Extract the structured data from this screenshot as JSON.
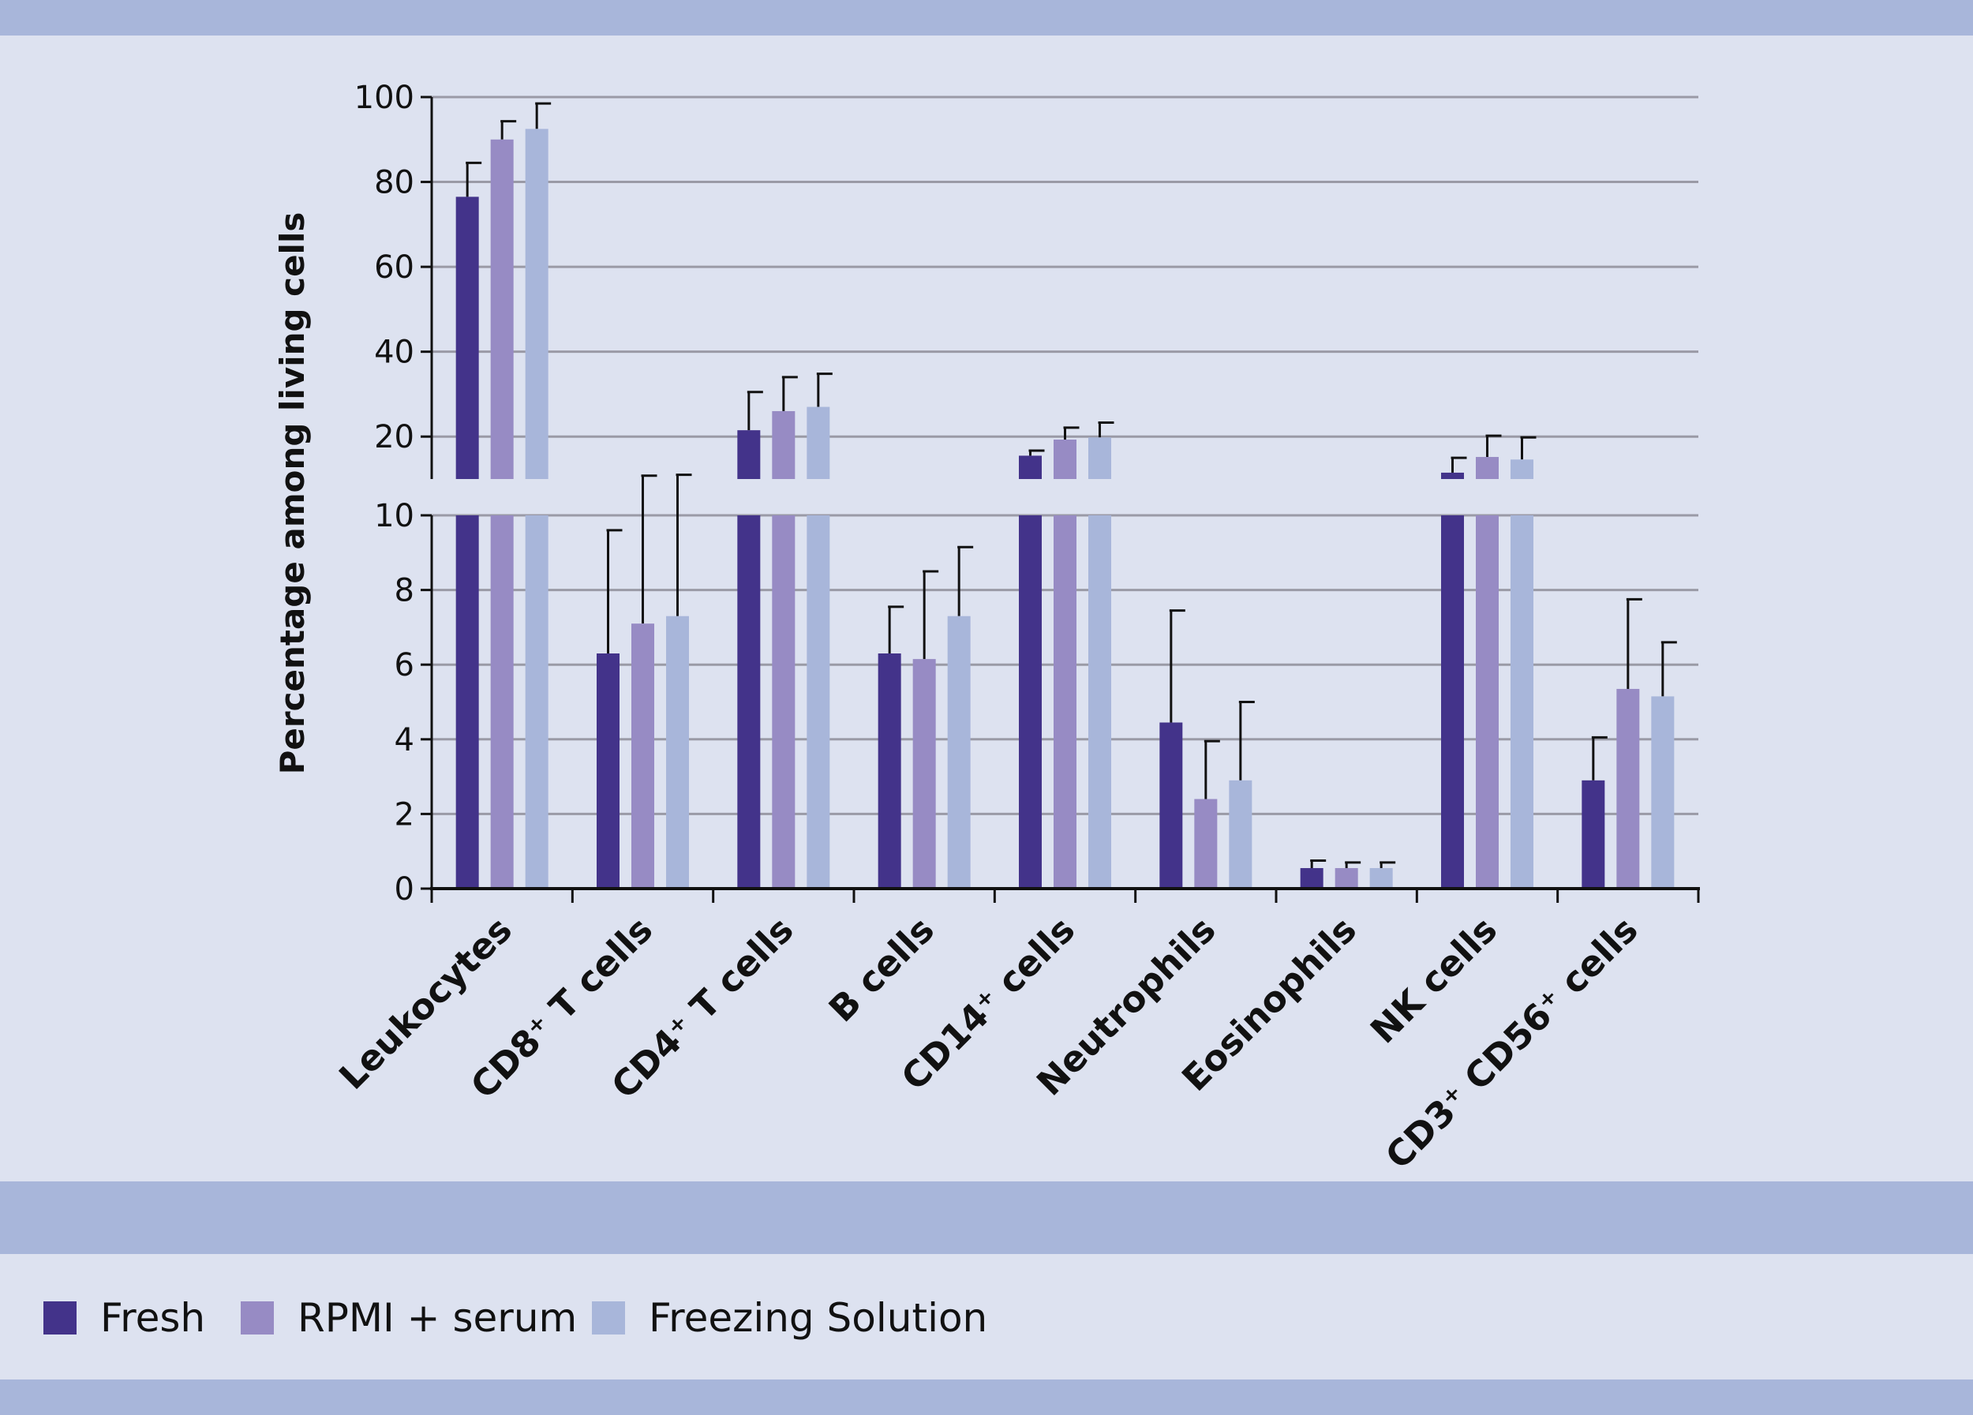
{
  "chart_data": {
    "type": "bar",
    "ylabel": "Percentage among living cells",
    "xlabel": "",
    "y_axis_break": true,
    "ylim_lower": [
      0,
      10
    ],
    "ylim_upper": [
      10,
      100
    ],
    "yticks_lower": [
      "0",
      "2",
      "4",
      "6",
      "8",
      "10"
    ],
    "yticks_upper": [
      "20",
      "40",
      "60",
      "80",
      "100"
    ],
    "categories": [
      "Leukocytes",
      "CD8⁺ T cells",
      "CD4⁺ T cells",
      "B cells",
      "CD14⁺ cells",
      "Neutrophils",
      "Eosinophils",
      "NK cells",
      "CD3⁺ CD56⁺ cells"
    ],
    "series": [
      {
        "name": "Fresh",
        "color": "#43338a",
        "values": [
          76.5,
          6.3,
          21.5,
          6.3,
          15.5,
          4.45,
          0.55,
          11.5,
          2.9
        ],
        "errors": [
          8.0,
          3.3,
          9.0,
          1.25,
          1.2,
          3.0,
          0.2,
          3.5,
          1.15
        ]
      },
      {
        "name": "RPMI + serum",
        "color": "#978bc4",
        "values": [
          90,
          7.1,
          26,
          6.15,
          19.3,
          2.4,
          0.55,
          15.2,
          5.35
        ],
        "errors": [
          4.3,
          3.7,
          8.0,
          2.35,
          2.8,
          1.55,
          0.15,
          5.0,
          2.4
        ]
      },
      {
        "name": "Freezing Solution",
        "color": "#a8b6da",
        "values": [
          92.5,
          7.3,
          27,
          7.3,
          19.8,
          2.9,
          0.55,
          14.6,
          5.15
        ],
        "errors": [
          6.0,
          3.7,
          7.8,
          1.85,
          3.5,
          2.1,
          0.15,
          5.2,
          1.45
        ]
      }
    ]
  },
  "legend": {
    "items": [
      {
        "label": "Fresh",
        "color": "#43338a"
      },
      {
        "label": "RPMI + serum",
        "color": "#978bc4"
      },
      {
        "label": "Freezing Solution",
        "color": "#a8b6da"
      }
    ]
  }
}
